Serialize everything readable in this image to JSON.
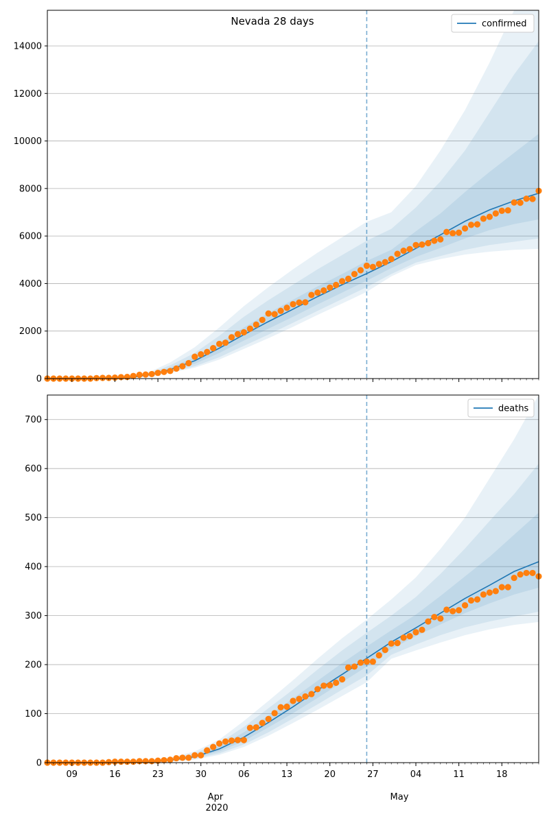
{
  "figure": {
    "title": "Nevada 28 days",
    "x_month_labels": [
      "Apr\n2020",
      "May"
    ],
    "forecast_start": "2020-04-26",
    "colors": {
      "line": "#1f77b4",
      "observed": "#ff7f0e",
      "band": "#1f77b4",
      "grid": "#b0b0b0",
      "axis": "#000000"
    }
  },
  "chart_data": [
    {
      "type": "line",
      "name": "confirmed-panel",
      "title": "Nevada 28 days",
      "legend": {
        "label": "confirmed",
        "placement": "top-right"
      },
      "x_start": "2020-03-05",
      "x_end": "2020-05-24",
      "x_ticks": [
        "09",
        "16",
        "23",
        "30",
        "06",
        "13",
        "20",
        "27",
        "04",
        "11",
        "18"
      ],
      "x_tick_dates": [
        "2020-03-09",
        "2020-03-16",
        "2020-03-23",
        "2020-03-30",
        "2020-04-06",
        "2020-04-13",
        "2020-04-20",
        "2020-04-27",
        "2020-05-04",
        "2020-05-11",
        "2020-05-18"
      ],
      "ylim": [
        0,
        15500
      ],
      "yticks": [
        0,
        2000,
        4000,
        6000,
        8000,
        10000,
        12000,
        14000
      ],
      "grid": "horizontal",
      "forecast_start": "2020-04-26",
      "observed": {
        "dates": [
          "2020-03-05",
          "2020-03-06",
          "2020-03-07",
          "2020-03-08",
          "2020-03-09",
          "2020-03-10",
          "2020-03-11",
          "2020-03-12",
          "2020-03-13",
          "2020-03-14",
          "2020-03-15",
          "2020-03-16",
          "2020-03-17",
          "2020-03-18",
          "2020-03-19",
          "2020-03-20",
          "2020-03-21",
          "2020-03-22",
          "2020-03-23",
          "2020-03-24",
          "2020-03-25",
          "2020-03-26",
          "2020-03-27",
          "2020-03-28",
          "2020-03-29",
          "2020-03-30",
          "2020-03-31",
          "2020-04-01",
          "2020-04-02",
          "2020-04-03",
          "2020-04-04",
          "2020-04-05",
          "2020-04-06",
          "2020-04-07",
          "2020-04-08",
          "2020-04-09",
          "2020-04-10",
          "2020-04-11",
          "2020-04-12",
          "2020-04-13",
          "2020-04-14",
          "2020-04-15",
          "2020-04-16",
          "2020-04-17",
          "2020-04-18",
          "2020-04-19",
          "2020-04-20",
          "2020-04-21",
          "2020-04-22",
          "2020-04-23",
          "2020-04-24",
          "2020-04-25",
          "2020-04-26",
          "2020-04-27",
          "2020-04-28",
          "2020-04-29",
          "2020-04-30",
          "2020-05-01",
          "2020-05-02",
          "2020-05-03",
          "2020-05-04",
          "2020-05-05",
          "2020-05-06",
          "2020-05-07",
          "2020-05-08",
          "2020-05-09",
          "2020-05-10",
          "2020-05-11",
          "2020-05-12",
          "2020-05-13",
          "2020-05-14",
          "2020-05-15",
          "2020-05-16",
          "2020-05-17",
          "2020-05-18",
          "2020-05-19",
          "2020-05-20",
          "2020-05-21",
          "2020-05-22",
          "2020-05-23",
          "2020-05-24"
        ],
        "values": [
          0,
          0,
          0,
          0,
          0,
          0,
          0,
          0,
          20,
          30,
          30,
          40,
          60,
          70,
          110,
          160,
          170,
          190,
          240,
          280,
          320,
          420,
          520,
          650,
          920,
          1020,
          1120,
          1280,
          1460,
          1510,
          1740,
          1870,
          1950,
          2100,
          2270,
          2470,
          2740,
          2710,
          2850,
          2980,
          3130,
          3200,
          3210,
          3520,
          3620,
          3710,
          3830,
          3940,
          4100,
          4200,
          4400,
          4560,
          4750,
          4700,
          4820,
          4900,
          5030,
          5250,
          5380,
          5450,
          5620,
          5640,
          5700,
          5800,
          5860,
          6170,
          6120,
          6140,
          6320,
          6470,
          6490,
          6730,
          6810,
          6950,
          7060,
          7080,
          7410,
          7400,
          7570,
          7560,
          7900
        ]
      },
      "model": {
        "dates": [
          "2020-03-05",
          "2020-03-12",
          "2020-03-19",
          "2020-03-22",
          "2020-03-25",
          "2020-03-29",
          "2020-04-02",
          "2020-04-06",
          "2020-04-10",
          "2020-04-14",
          "2020-04-18",
          "2020-04-22",
          "2020-04-26",
          "2020-04-30",
          "2020-05-04",
          "2020-05-08",
          "2020-05-12",
          "2020-05-16",
          "2020-05-20",
          "2020-05-24"
        ],
        "median": [
          0,
          10,
          60,
          180,
          380,
          750,
          1280,
          1850,
          2400,
          2920,
          3450,
          3950,
          4420,
          4920,
          5480,
          6050,
          6620,
          7100,
          7480,
          7800
        ],
        "p25": [
          0,
          8,
          50,
          150,
          320,
          620,
          1080,
          1600,
          2100,
          2600,
          3120,
          3620,
          4120,
          4650,
          5120,
          5500,
          5900,
          6250,
          6500,
          6700
        ],
        "p75": [
          0,
          12,
          75,
          220,
          460,
          900,
          1500,
          2150,
          2760,
          3320,
          3880,
          4400,
          4950,
          5420,
          6200,
          6950,
          7850,
          8700,
          9500,
          10300
        ],
        "p10": [
          0,
          6,
          40,
          120,
          270,
          520,
          900,
          1380,
          1850,
          2350,
          2850,
          3350,
          3850,
          4400,
          4880,
          5160,
          5420,
          5620,
          5760,
          5900
        ],
        "p90": [
          0,
          14,
          90,
          260,
          560,
          1080,
          1800,
          2600,
          3300,
          3950,
          4600,
          5200,
          5800,
          6300,
          7200,
          8300,
          9600,
          11200,
          12800,
          14200
        ],
        "p5": [
          0,
          5,
          35,
          100,
          240,
          460,
          800,
          1250,
          1700,
          2180,
          2680,
          3160,
          3650,
          4300,
          4780,
          5030,
          5220,
          5340,
          5420,
          5460
        ],
        "p95": [
          0,
          16,
          110,
          320,
          680,
          1320,
          2150,
          3050,
          3850,
          4600,
          5300,
          5950,
          6600,
          7000,
          8100,
          9600,
          11300,
          13300,
          15800,
          18000
        ]
      }
    },
    {
      "type": "line",
      "name": "deaths-panel",
      "legend": {
        "label": "deaths",
        "placement": "top-right"
      },
      "x_start": "2020-03-05",
      "x_end": "2020-05-24",
      "x_ticks": [
        "09",
        "16",
        "23",
        "30",
        "06",
        "13",
        "20",
        "27",
        "04",
        "11",
        "18"
      ],
      "x_tick_dates": [
        "2020-03-09",
        "2020-03-16",
        "2020-03-23",
        "2020-03-30",
        "2020-04-06",
        "2020-04-13",
        "2020-04-20",
        "2020-04-27",
        "2020-05-04",
        "2020-05-11",
        "2020-05-18"
      ],
      "ylim": [
        0,
        750
      ],
      "yticks": [
        0,
        100,
        200,
        300,
        400,
        500,
        600,
        700
      ],
      "grid": "horizontal",
      "forecast_start": "2020-04-26",
      "observed": {
        "dates": [
          "2020-03-05",
          "2020-03-06",
          "2020-03-07",
          "2020-03-08",
          "2020-03-09",
          "2020-03-10",
          "2020-03-11",
          "2020-03-12",
          "2020-03-13",
          "2020-03-14",
          "2020-03-15",
          "2020-03-16",
          "2020-03-17",
          "2020-03-18",
          "2020-03-19",
          "2020-03-20",
          "2020-03-21",
          "2020-03-22",
          "2020-03-23",
          "2020-03-24",
          "2020-03-25",
          "2020-03-26",
          "2020-03-27",
          "2020-03-28",
          "2020-03-29",
          "2020-03-30",
          "2020-03-31",
          "2020-04-01",
          "2020-04-02",
          "2020-04-03",
          "2020-04-04",
          "2020-04-05",
          "2020-04-06",
          "2020-04-07",
          "2020-04-08",
          "2020-04-09",
          "2020-04-10",
          "2020-04-11",
          "2020-04-12",
          "2020-04-13",
          "2020-04-14",
          "2020-04-15",
          "2020-04-16",
          "2020-04-17",
          "2020-04-18",
          "2020-04-19",
          "2020-04-20",
          "2020-04-21",
          "2020-04-22",
          "2020-04-23",
          "2020-04-24",
          "2020-04-25",
          "2020-04-26",
          "2020-04-27",
          "2020-04-28",
          "2020-04-29",
          "2020-04-30",
          "2020-05-01",
          "2020-05-02",
          "2020-05-03",
          "2020-05-04",
          "2020-05-05",
          "2020-05-06",
          "2020-05-07",
          "2020-05-08",
          "2020-05-09",
          "2020-05-10",
          "2020-05-11",
          "2020-05-12",
          "2020-05-13",
          "2020-05-14",
          "2020-05-15",
          "2020-05-16",
          "2020-05-17",
          "2020-05-18",
          "2020-05-19",
          "2020-05-20",
          "2020-05-21",
          "2020-05-22",
          "2020-05-23",
          "2020-05-24"
        ],
        "values": [
          0,
          0,
          0,
          0,
          0,
          0,
          0,
          0,
          0,
          0,
          1,
          2,
          2,
          2,
          2,
          3,
          3,
          3,
          4,
          5,
          6,
          9,
          10,
          10,
          15,
          15,
          25,
          32,
          39,
          43,
          45,
          46,
          46,
          71,
          72,
          81,
          89,
          101,
          113,
          114,
          126,
          130,
          135,
          140,
          150,
          157,
          158,
          163,
          170,
          194,
          196,
          204,
          206,
          206,
          219,
          230,
          243,
          244,
          255,
          258,
          266,
          271,
          288,
          297,
          294,
          312,
          309,
          311,
          321,
          331,
          333,
          343,
          347,
          350,
          358,
          358,
          377,
          384,
          387,
          387,
          380
        ]
      },
      "model": {
        "dates": [
          "2020-03-05",
          "2020-03-12",
          "2020-03-19",
          "2020-03-22",
          "2020-03-25",
          "2020-03-29",
          "2020-04-02",
          "2020-04-06",
          "2020-04-10",
          "2020-04-14",
          "2020-04-18",
          "2020-04-22",
          "2020-04-26",
          "2020-04-30",
          "2020-05-04",
          "2020-05-08",
          "2020-05-12",
          "2020-05-16",
          "2020-05-20",
          "2020-05-24"
        ],
        "median": [
          0,
          0,
          1,
          2,
          5,
          12,
          28,
          52,
          82,
          114,
          148,
          180,
          213,
          246,
          275,
          305,
          335,
          362,
          390,
          410
        ],
        "p25": [
          0,
          0,
          1,
          2,
          4,
          10,
          23,
          44,
          72,
          101,
          132,
          164,
          196,
          232,
          258,
          282,
          305,
          325,
          343,
          357
        ],
        "p75": [
          0,
          0,
          2,
          3,
          6,
          15,
          34,
          62,
          96,
          131,
          167,
          203,
          237,
          270,
          302,
          340,
          380,
          420,
          465,
          510
        ],
        "p10": [
          0,
          0,
          0,
          1,
          3,
          8,
          19,
          37,
          62,
          90,
          119,
          149,
          178,
          220,
          241,
          260,
          276,
          288,
          298,
          308
        ],
        "p90": [
          0,
          0,
          3,
          4,
          8,
          19,
          40,
          73,
          111,
          149,
          190,
          229,
          265,
          300,
          338,
          385,
          437,
          493,
          548,
          610
        ],
        "p5": [
          0,
          0,
          0,
          1,
          2,
          6,
          16,
          32,
          55,
          81,
          108,
          136,
          164,
          212,
          229,
          245,
          260,
          272,
          281,
          287
        ],
        "p95": [
          0,
          0,
          4,
          5,
          10,
          23,
          47,
          85,
          126,
          168,
          212,
          254,
          292,
          333,
          378,
          436,
          500,
          580,
          660,
          750
        ]
      }
    }
  ]
}
